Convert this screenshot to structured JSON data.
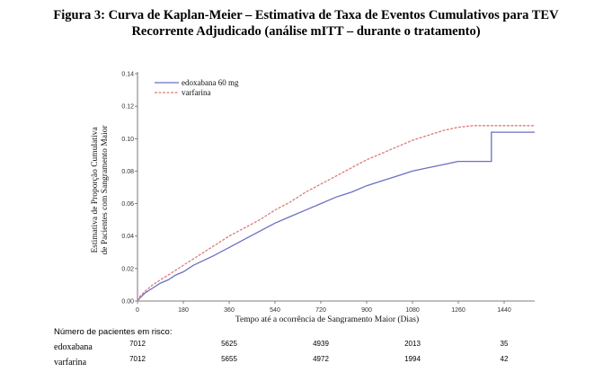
{
  "title_line1": "Figura 3: Curva de Kaplan-Meier – Estimativa de Taxa de Eventos Cumulativos para TEV",
  "title_line2": "Recorrente Adjudicado (análise mITT – durante o tratamento)",
  "chart_data": {
    "type": "line",
    "xlabel": "Tempo até a ocorrência de Sangramento Maior (Dias)",
    "ylabel": "Estimativa de Proporção Cumulativa de Pacientes com Sangramento Maior",
    "ylabel_lines": [
      "Estimativa de Proporção Cumulativa",
      "de Pacientes com Sangramento Maior"
    ],
    "xlim": [
      0,
      1560
    ],
    "ylim": [
      0,
      0.14
    ],
    "x_ticks": [
      0,
      180,
      360,
      540,
      720,
      900,
      1080,
      1260,
      1440
    ],
    "y_ticks": [
      "0.00",
      "0.02",
      "0.04",
      "0.06",
      "0.08",
      "0.10",
      "0.12",
      "0.14"
    ],
    "legend_position": "top-left",
    "series": [
      {
        "name": "edoxabana 60 mg",
        "color": "#6b6fc4",
        "dash": "solid",
        "x": [
          0,
          10,
          30,
          60,
          90,
          120,
          150,
          180,
          220,
          260,
          300,
          360,
          420,
          480,
          540,
          600,
          660,
          720,
          780,
          840,
          900,
          960,
          1020,
          1080,
          1140,
          1200,
          1260,
          1300,
          1380,
          1390,
          1560
        ],
        "y": [
          0,
          0.002,
          0.005,
          0.008,
          0.011,
          0.013,
          0.016,
          0.018,
          0.022,
          0.025,
          0.028,
          0.033,
          0.038,
          0.043,
          0.048,
          0.052,
          0.056,
          0.06,
          0.064,
          0.067,
          0.071,
          0.074,
          0.077,
          0.08,
          0.082,
          0.084,
          0.086,
          0.086,
          0.086,
          0.104,
          0.104
        ]
      },
      {
        "name": "varfarina",
        "color": "#e07a7a",
        "dash": "dashed",
        "x": [
          0,
          10,
          30,
          60,
          90,
          120,
          150,
          180,
          220,
          260,
          300,
          360,
          420,
          480,
          540,
          600,
          660,
          720,
          780,
          840,
          900,
          960,
          1020,
          1080,
          1140,
          1200,
          1260,
          1320,
          1380,
          1440,
          1560
        ],
        "y": [
          0,
          0.003,
          0.006,
          0.01,
          0.013,
          0.016,
          0.019,
          0.022,
          0.026,
          0.03,
          0.034,
          0.04,
          0.045,
          0.05,
          0.056,
          0.061,
          0.067,
          0.072,
          0.077,
          0.082,
          0.087,
          0.091,
          0.095,
          0.099,
          0.102,
          0.105,
          0.107,
          0.108,
          0.108,
          0.108,
          0.108
        ]
      }
    ]
  },
  "risk_table": {
    "title": "Número de pacientes em risco:",
    "timepoints": [
      0,
      360,
      720,
      1080,
      1440
    ],
    "rows": [
      {
        "label": "edoxabana",
        "values": [
          "7012",
          "5625",
          "4939",
          "2013",
          "35"
        ]
      },
      {
        "label": "varfarina",
        "values": [
          "7012",
          "5655",
          "4972",
          "1994",
          "42"
        ]
      }
    ]
  }
}
